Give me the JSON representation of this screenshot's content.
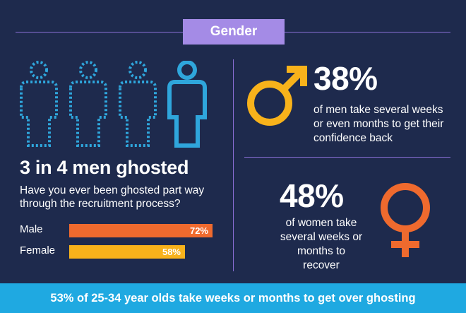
{
  "header": {
    "tag": "Gender"
  },
  "left": {
    "headline": "3 in 4 men ghosted",
    "question": "Have you ever been ghosted part way through the recruitment process?",
    "icons": [
      "person-outline-icon",
      "person-outline-icon",
      "person-outline-icon",
      "person-solid-icon"
    ]
  },
  "chart_data": {
    "type": "bar",
    "orientation": "horizontal",
    "categories": [
      "Male",
      "Female"
    ],
    "values": [
      72,
      58
    ],
    "value_labels": [
      "72%",
      "58%"
    ],
    "xlim": [
      0,
      100
    ],
    "colors": [
      "#ef6a2e",
      "#f8b21b"
    ]
  },
  "men": {
    "stat": "38%",
    "text": [
      "of men take several weeks",
      "or even months to get their",
      "confidence back"
    ],
    "icon": "male-symbol-icon",
    "color": "#f8b21b"
  },
  "women": {
    "stat": "48%",
    "text": [
      "of women take",
      "several weeks or",
      "months to recover"
    ],
    "icon": "female-symbol-icon",
    "color": "#ef6a2e"
  },
  "footer": {
    "text": "53% of 25-34 year olds take weeks or months to get over ghosting"
  },
  "colors": {
    "background": "#1e2a4d",
    "divider": "#8a6fd6",
    "tag": "#a48be6",
    "footer": "#1fa9e1",
    "person_outline": "#2fa6dc",
    "person_solid": "#2fa6dc"
  }
}
